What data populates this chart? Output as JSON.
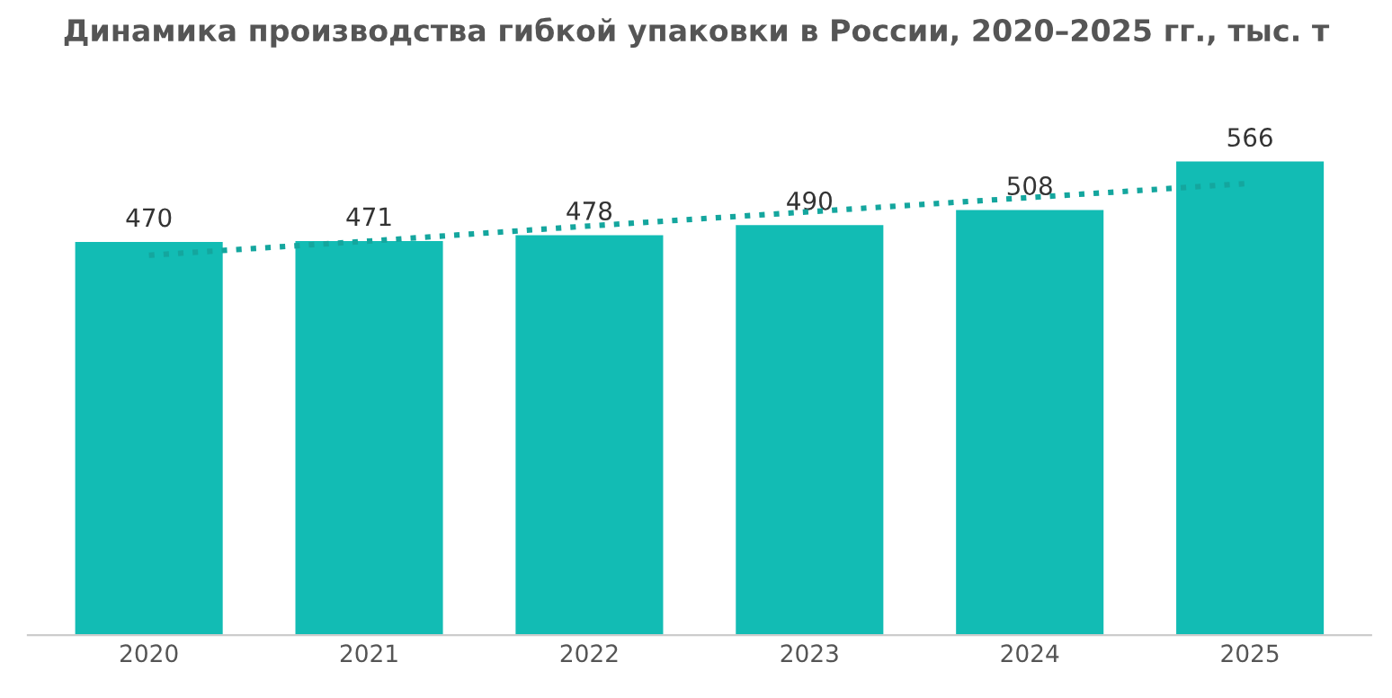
{
  "chart_data": {
    "type": "bar",
    "title": "Динамика производства гибкой упаковки в России, 2020–2025 гг., тыс. т",
    "categories": [
      "2020",
      "2021",
      "2022",
      "2023",
      "2024",
      "2025"
    ],
    "series": [
      {
        "color": "#12bcb4",
        "values": [
          470,
          471,
          478,
          490,
          508,
          566
        ],
        "data_labels": true
      },
      {
        "type": "line",
        "color": "#14a69e",
        "values": [
          454,
          471,
          489,
          506,
          523,
          540
        ],
        "line_style": "dotted"
      }
    ],
    "grid": false,
    "legend": false,
    "tick_labels": "x"
  }
}
